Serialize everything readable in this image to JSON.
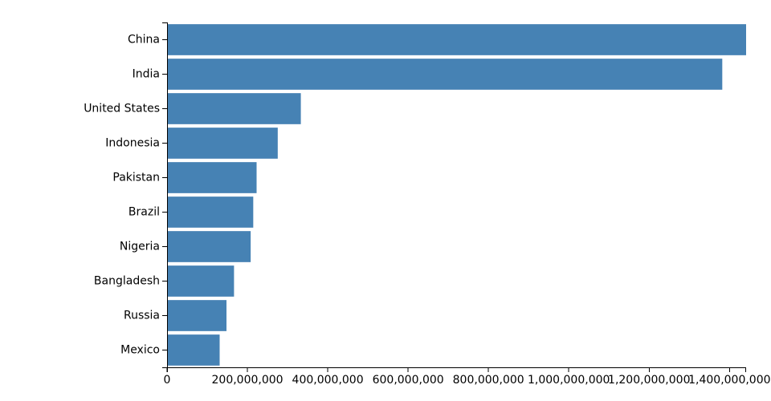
{
  "chart_data": {
    "type": "bar",
    "orientation": "horizontal",
    "title": "",
    "xlabel": "",
    "ylabel": "",
    "categories": [
      "China",
      "India",
      "United States",
      "Indonesia",
      "Pakistan",
      "Brazil",
      "Nigeria",
      "Bangladesh",
      "Russia",
      "Mexico"
    ],
    "values": [
      1439323776,
      1380004385,
      331002651,
      273523615,
      220892340,
      212559417,
      206139589,
      164689383,
      145934462,
      128932753
    ],
    "xlim": [
      0,
      1439323776
    ],
    "x_ticks": [
      0,
      200000000,
      400000000,
      600000000,
      800000000,
      1000000000,
      1200000000,
      1400000000
    ],
    "x_tick_labels": [
      "0",
      "200,000,000",
      "400,000,000",
      "600,000,000",
      "800,000,000",
      "1,000,000,000",
      "1,200,000,000",
      "1,400,000,000"
    ],
    "bar_color": "#4682b4",
    "grid": false,
    "legend": "none"
  }
}
